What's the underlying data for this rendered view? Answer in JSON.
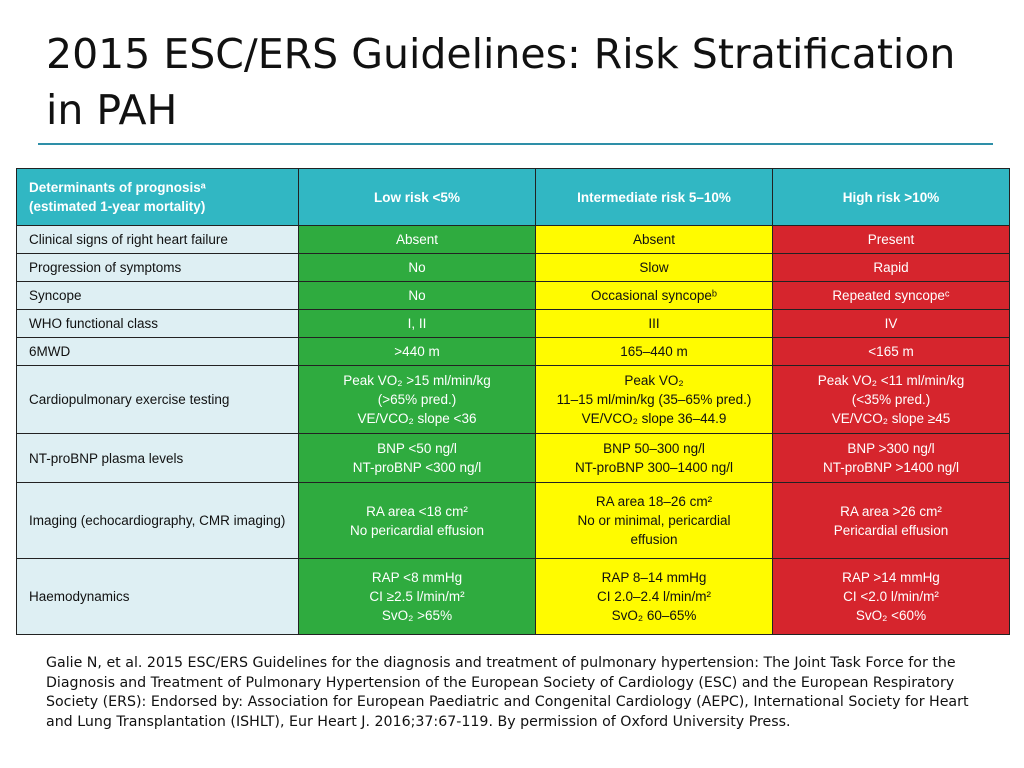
{
  "title": "2015 ESC/ERS Guidelines: Risk Stratification in PAH",
  "colors": {
    "header": "#31b7c3",
    "low_risk": "#2fab3f",
    "intermediate_risk": "#fffb00",
    "high_risk": "#d6252d",
    "label_cell": "#deeff3",
    "title_rule": "#2e8fa8"
  },
  "table": {
    "headers": {
      "determinants": [
        "Determinants of prognosisᵃ",
        "(estimated 1-year mortality)"
      ],
      "low": "Low risk <5%",
      "intermediate": "Intermediate risk 5–10%",
      "high": "High risk >10%"
    },
    "rows": [
      {
        "label": "Clinical signs of right heart failure",
        "low": [
          "Absent"
        ],
        "intermediate": [
          "Absent"
        ],
        "high": [
          "Present"
        ]
      },
      {
        "label": "Progression of symptoms",
        "low": [
          "No"
        ],
        "intermediate": [
          "Slow"
        ],
        "high": [
          "Rapid"
        ]
      },
      {
        "label": "Syncope",
        "low": [
          "No"
        ],
        "intermediate": [
          "Occasional syncopeᵇ"
        ],
        "high": [
          "Repeated syncopeᶜ"
        ]
      },
      {
        "label": "WHO functional class",
        "low": [
          "I, II"
        ],
        "intermediate": [
          "III"
        ],
        "high": [
          "IV"
        ]
      },
      {
        "label": "6MWD",
        "low": [
          ">440 m"
        ],
        "intermediate": [
          "165–440 m"
        ],
        "high": [
          "<165 m"
        ]
      },
      {
        "label": "Cardiopulmonary exercise testing",
        "low": [
          "Peak VO₂ >15 ml/min/kg",
          "(>65% pred.)",
          "VE/VCO₂ slope <36"
        ],
        "intermediate": [
          "Peak VO₂",
          "11–15 ml/min/kg (35–65% pred.)",
          "VE/VCO₂ slope 36–44.9"
        ],
        "high": [
          "Peak VO₂ <11 ml/min/kg",
          "(<35% pred.)",
          "VE/VCO₂ slope ≥45"
        ]
      },
      {
        "label": "NT-proBNP plasma levels",
        "low": [
          "BNP <50 ng/l",
          "NT-proBNP <300 ng/l"
        ],
        "intermediate": [
          "BNP 50–300 ng/l",
          "NT-proBNP 300–1400 ng/l"
        ],
        "high": [
          "BNP >300 ng/l",
          "NT-proBNP >1400 ng/l"
        ]
      },
      {
        "label": "Imaging (echocardiography, CMR imaging)",
        "low": [
          "RA area <18 cm²",
          "No pericardial effusion"
        ],
        "intermediate": [
          "RA area 18–26 cm²",
          "No or minimal, pericardial",
          "effusion"
        ],
        "high": [
          "RA area >26 cm²",
          "Pericardial effusion"
        ]
      },
      {
        "label": "Haemodynamics",
        "low": [
          "RAP <8 mmHg",
          "CI ≥2.5 l/min/m²",
          "SvO₂ >65%"
        ],
        "intermediate": [
          "RAP 8–14 mmHg",
          "CI 2.0–2.4 l/min/m²",
          "SvO₂ 60–65%"
        ],
        "high": [
          "RAP >14 mmHg",
          "CI <2.0 l/min/m²",
          "SvO₂ <60%"
        ]
      }
    ]
  },
  "citation": "Galie N, et al. 2015 ESC/ERS Guidelines for the diagnosis and treatment of pulmonary hypertension: The Joint Task Force for the Diagnosis and Treatment of Pulmonary Hypertension of the European Society of Cardiology (ESC) and the European Respiratory Society (ERS): Endorsed by: Association for European Paediatric and Congenital Cardiology (AEPC), International Society for Heart and Lung Transplantation (ISHLT), Eur Heart J. 2016;37:67-119. By permission of Oxford University Press."
}
